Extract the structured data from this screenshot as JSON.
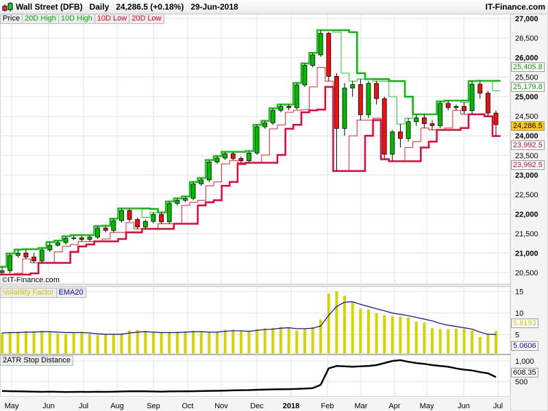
{
  "header": {
    "title": "Wall Street (DFB)   Daily   24,286.5 (+0.18%)   29-Jun-2018",
    "brand": "IT-Finance.com",
    "watermark": "©IT-Finance.com"
  },
  "legends": {
    "price": [
      {
        "label": "Price",
        "color": "#000000"
      },
      {
        "label": "20D High",
        "color": "#00aa00"
      },
      {
        "label": "10D High",
        "color": "#00aa00"
      },
      {
        "label": "10D Low",
        "color": "#e8002a"
      },
      {
        "label": "20D Low",
        "color": "#e8002a"
      }
    ],
    "volatility": [
      {
        "label": "Volatility Factor",
        "color": "#c8c800"
      },
      {
        "label": "EMA20",
        "color": "#0000cc"
      }
    ],
    "atr": [
      {
        "label": "2ATR Stop Distance",
        "color": "#000000"
      }
    ]
  },
  "tags": {
    "high20": {
      "text": "25,405.8",
      "color": "#00aa00"
    },
    "high10": {
      "text": "25,179.8",
      "color": "#00aa00"
    },
    "price": {
      "text": "24,286.5",
      "color": "#ffcc00"
    },
    "low10": {
      "text": "23,992.5",
      "color": "#e8002a"
    },
    "low20": {
      "text": "23,992.5",
      "color": "#e8002a"
    },
    "vol": {
      "text": "5.8193",
      "color": "#c8c800"
    },
    "ema": {
      "text": "5.0606",
      "color": "#0000cc"
    },
    "atr": {
      "text": "608.35",
      "color": "#000000"
    }
  },
  "chart_data": [
    {
      "type": "candlestick",
      "title": "Wall Street (DFB) Daily",
      "x_ticks": [
        "May",
        "Jun",
        "Jul",
        "Aug",
        "Sep",
        "Oct",
        "Nov",
        "Dec",
        "2018",
        "Feb",
        "Mar",
        "Apr",
        "May",
        "Jun",
        "Jul"
      ],
      "y_ticks": [
        "27,000",
        "26,500",
        "26,000",
        "25,500",
        "25,000",
        "24,500",
        "24,000",
        "23,500",
        "23,000",
        "22,500",
        "22,000",
        "21,500",
        "21,000",
        "20,500"
      ],
      "ylim": [
        20500,
        27000
      ],
      "grid": true,
      "open": [
        20500,
        20550,
        20940,
        21000,
        20900,
        20800,
        21080,
        21200,
        21270,
        21380,
        21390,
        21350,
        21410,
        21640,
        21580,
        21830,
        22090,
        21860,
        21670,
        21810,
        21990,
        21800,
        22270,
        22350,
        22400,
        22770,
        22870,
        23330,
        23430,
        23540,
        23420,
        23360,
        23560,
        24230,
        24330,
        24650,
        24750,
        24720,
        25300,
        25800,
        26070,
        26620,
        25520,
        24190,
        25220,
        25310,
        24540,
        25340,
        24950,
        23530,
        24100,
        23930,
        24360,
        24460,
        24310,
        24260,
        24830,
        24720,
        24750,
        24640,
        25320,
        25090,
        24580
      ],
      "high": [
        20650,
        20990,
        21090,
        21100,
        21000,
        21130,
        21280,
        21320,
        21430,
        21460,
        21440,
        21460,
        21690,
        21700,
        21880,
        22140,
        22130,
        21910,
        21860,
        22040,
        22040,
        22320,
        22400,
        22450,
        22820,
        22920,
        23380,
        23480,
        23590,
        23590,
        23470,
        23610,
        24280,
        24380,
        24700,
        24800,
        24800,
        25350,
        25850,
        26120,
        26700,
        26650,
        25600,
        25350,
        25400,
        25450,
        25400,
        25400,
        25000,
        24150,
        24300,
        24450,
        24550,
        24550,
        24400,
        24880,
        24900,
        24800,
        24850,
        25400,
        25405.8,
        25150,
        24650
      ],
      "low": [
        20450,
        20480,
        20880,
        20850,
        20750,
        20750,
        21030,
        21170,
        21220,
        21330,
        21300,
        21300,
        21360,
        21530,
        21530,
        21780,
        21800,
        21620,
        21620,
        21760,
        21750,
        21750,
        22220,
        22300,
        22350,
        22720,
        22820,
        23280,
        23380,
        23370,
        23310,
        23310,
        23510,
        24180,
        24280,
        24600,
        24650,
        24670,
        25250,
        25750,
        26020,
        25400,
        23100,
        24000,
        25000,
        24400,
        24450,
        24800,
        23400,
        23350,
        23700,
        23850,
        24250,
        24200,
        24150,
        24200,
        24650,
        24650,
        24550,
        24550,
        24950,
        24500,
        23992.5
      ],
      "close": [
        20550,
        20940,
        21000,
        20900,
        20800,
        21080,
        21200,
        21270,
        21380,
        21390,
        21350,
        21410,
        21640,
        21580,
        21830,
        22090,
        21860,
        21670,
        21810,
        21990,
        21800,
        22270,
        22350,
        22400,
        22770,
        22870,
        23330,
        23430,
        23540,
        23420,
        23360,
        23560,
        24230,
        24330,
        24650,
        24750,
        24720,
        25300,
        25800,
        26070,
        26620,
        25520,
        24190,
        25220,
        25310,
        24540,
        25340,
        24950,
        23530,
        24100,
        23930,
        24360,
        24460,
        24310,
        24260,
        24830,
        24720,
        24750,
        24640,
        25320,
        25090,
        24580,
        24286.5
      ],
      "series": [
        {
          "name": "20D High"
        },
        {
          "name": "10D High"
        },
        {
          "name": "10D Low"
        },
        {
          "name": "20D Low"
        }
      ]
    },
    {
      "type": "bar+line",
      "y_ticks": [
        "15",
        "10",
        "5"
      ],
      "ylim": [
        1,
        16
      ],
      "series": [
        {
          "name": "Volatility Factor",
          "values": [
            5.5,
            5.6,
            5.7,
            5.8,
            5.8,
            5.9,
            5.6,
            5.3,
            5.2,
            5.4,
            5.6,
            5.2,
            4.9,
            5.1,
            5.2,
            5.3,
            6.0,
            6.1,
            5.9,
            5.5,
            5.4,
            5.6,
            5.7,
            5.8,
            5.9,
            5.6,
            5.5,
            5.7,
            6.1,
            6.2,
            6.0,
            5.7,
            6.3,
            6.5,
            6.6,
            6.8,
            6.7,
            6.0,
            6.4,
            6.8,
            8.5,
            14.5,
            15.0,
            14.0,
            12.5,
            11.0,
            10.8,
            10.0,
            9.5,
            9.3,
            9.2,
            9.0,
            8.0,
            7.8,
            6.5,
            6.3,
            6.3,
            6.4,
            6.4,
            6.0,
            4.5,
            5.2,
            5.8193
          ]
        },
        {
          "name": "EMA20",
          "values": [
            5.4,
            5.5,
            5.5,
            5.6,
            5.6,
            5.7,
            5.7,
            5.6,
            5.5,
            5.5,
            5.5,
            5.4,
            5.2,
            5.1,
            5.1,
            5.1,
            5.4,
            5.6,
            5.7,
            5.6,
            5.5,
            5.5,
            5.5,
            5.6,
            5.7,
            5.7,
            5.6,
            5.6,
            5.8,
            5.9,
            5.9,
            5.8,
            6.0,
            6.2,
            6.3,
            6.5,
            6.6,
            6.4,
            6.4,
            6.5,
            7.0,
            9.5,
            11.5,
            12.5,
            12.6,
            12.0,
            11.5,
            11.0,
            10.5,
            10.0,
            9.7,
            9.4,
            9.0,
            8.6,
            8.2,
            7.6,
            7.2,
            6.9,
            6.6,
            6.3,
            5.6,
            5.1,
            5.0606
          ]
        }
      ]
    },
    {
      "type": "line",
      "y_ticks": [
        "1,000",
        "500"
      ],
      "ylim": [
        150,
        1100
      ],
      "series": [
        {
          "name": "2ATR Stop Distance",
          "values": [
            270,
            265,
            262,
            258,
            255,
            250,
            255,
            250,
            245,
            248,
            250,
            248,
            252,
            250,
            252,
            258,
            262,
            265,
            262,
            258,
            255,
            260,
            262,
            262,
            265,
            268,
            272,
            275,
            280,
            285,
            290,
            292,
            300,
            305,
            310,
            312,
            315,
            320,
            330,
            340,
            420,
            820,
            880,
            870,
            860,
            870,
            880,
            900,
            950,
            1000,
            1020,
            980,
            950,
            930,
            900,
            880,
            860,
            820,
            790,
            770,
            730,
            700,
            608.35
          ]
        }
      ]
    }
  ]
}
